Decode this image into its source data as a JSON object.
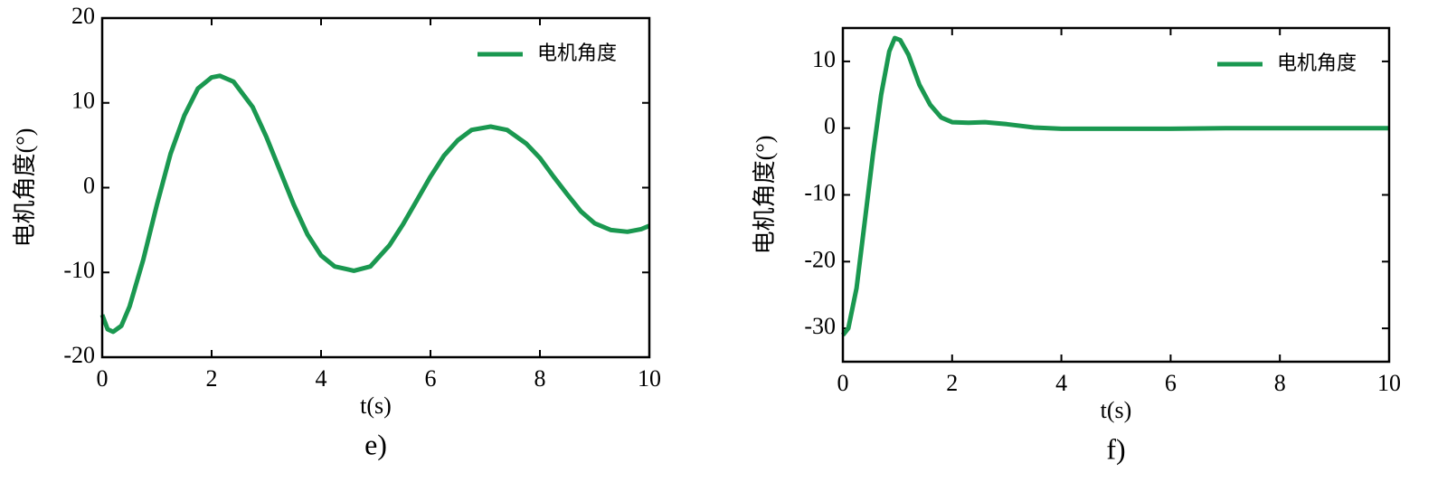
{
  "chart_data": [
    {
      "type": "line",
      "caption": "e)",
      "xlabel": "t(s)",
      "ylabel": "电机角度(°)",
      "legend": "upper right",
      "x": [
        0,
        0.1,
        0.2,
        0.35,
        0.5,
        0.75,
        1.0,
        1.25,
        1.5,
        1.75,
        2.0,
        2.15,
        2.4,
        2.75,
        3.0,
        3.25,
        3.5,
        3.75,
        4.0,
        4.25,
        4.6,
        4.9,
        5.25,
        5.5,
        5.75,
        6.0,
        6.25,
        6.5,
        6.75,
        7.1,
        7.4,
        7.75,
        8.0,
        8.25,
        8.5,
        8.75,
        9.0,
        9.3,
        9.6,
        9.85,
        10
      ],
      "series": [
        {
          "name": "电机角度",
          "color": "#1a9850",
          "values": [
            -15,
            -16.7,
            -17,
            -16.3,
            -14,
            -8.5,
            -2,
            4,
            8.5,
            11.7,
            13,
            13.2,
            12.5,
            9.5,
            6,
            2,
            -2,
            -5.5,
            -8,
            -9.3,
            -9.8,
            -9.3,
            -6.8,
            -4.3,
            -1.5,
            1.3,
            3.8,
            5.6,
            6.8,
            7.2,
            6.8,
            5.2,
            3.5,
            1.3,
            -0.8,
            -2.8,
            -4.2,
            -5,
            -5.2,
            -4.9,
            -4.5
          ]
        }
      ],
      "xlim": [
        0,
        10
      ],
      "ylim": [
        -20,
        20
      ],
      "xticks": [
        0,
        2,
        4,
        6,
        8,
        10
      ],
      "yticks": [
        -20,
        -10,
        0,
        10,
        20
      ]
    },
    {
      "type": "line",
      "caption": "f)",
      "xlabel": "t(s)",
      "ylabel": "电机角度(°)",
      "legend": "upper right",
      "x": [
        0,
        0.1,
        0.25,
        0.4,
        0.55,
        0.7,
        0.85,
        0.95,
        1.05,
        1.2,
        1.4,
        1.6,
        1.8,
        2.0,
        2.3,
        2.6,
        3.0,
        3.5,
        4,
        5,
        6,
        7,
        8,
        10
      ],
      "series": [
        {
          "name": "电机角度",
          "color": "#1a9850",
          "values": [
            -31,
            -30,
            -24,
            -14,
            -4,
            5,
            11.5,
            13.5,
            13.2,
            11,
            6.5,
            3.5,
            1.6,
            0.9,
            0.8,
            0.9,
            0.6,
            0.1,
            -0.1,
            -0.1,
            -0.1,
            0,
            0,
            0
          ]
        }
      ],
      "xlim": [
        0,
        10
      ],
      "ylim": [
        -35,
        15
      ],
      "xticks": [
        0,
        2,
        4,
        6,
        8,
        10
      ],
      "yticks": [
        -30,
        -20,
        -10,
        0,
        10
      ]
    }
  ]
}
